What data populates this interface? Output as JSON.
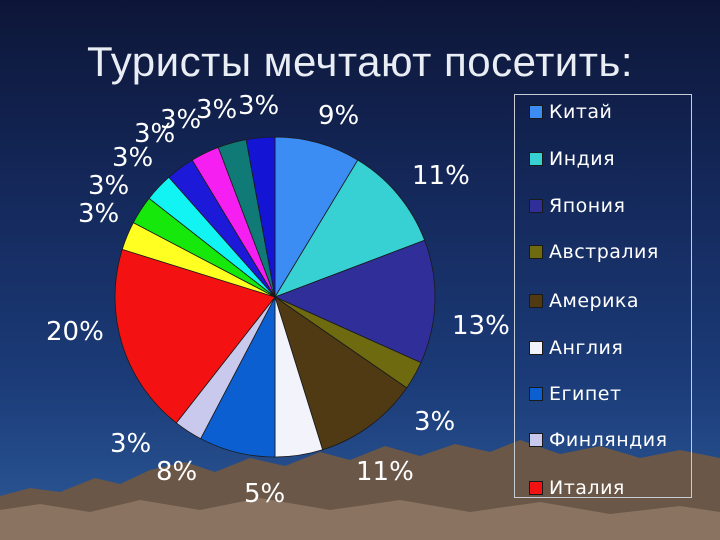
{
  "title": "Туристы мечтают посетить:",
  "chart_data": {
    "type": "pie",
    "title": "Туристы мечтают посетить:",
    "legend_position": "right",
    "legend": [
      "Китай",
      "Индия",
      "Япония",
      "Австралия",
      "Америка",
      "Англия",
      "Египет",
      "Финляндия",
      "Италия"
    ],
    "slices": [
      {
        "label": "Китай",
        "value": 9,
        "display": "9%",
        "color": "#3b8cf3"
      },
      {
        "label": "Индия",
        "value": 11,
        "display": "11%",
        "color": "#37d0d3"
      },
      {
        "label": "Япония",
        "value": 13,
        "display": "13%",
        "color": "#302f9a"
      },
      {
        "label": "Австралия",
        "value": 3,
        "display": "3%",
        "color": "#6e6a10"
      },
      {
        "label": "Америка",
        "value": 11,
        "display": "11%",
        "color": "#4f3a14"
      },
      {
        "label": "Англия",
        "value": 5,
        "display": "5%",
        "color": "#f3f3fb"
      },
      {
        "label": "Египет",
        "value": 8,
        "display": "8%",
        "color": "#0b5fd0"
      },
      {
        "label": "Финляндия",
        "value": 3,
        "display": "3%",
        "color": "#c9c9ee"
      },
      {
        "label": "Италия",
        "value": 20,
        "display": "20%",
        "color": "#f41111"
      },
      {
        "label": "",
        "value": 3,
        "display": "3%",
        "color": "#ffff22"
      },
      {
        "label": "",
        "value": 3,
        "display": "3%",
        "color": "#16e80b"
      },
      {
        "label": "",
        "value": 3,
        "display": "3%",
        "color": "#12f4f4"
      },
      {
        "label": "",
        "value": 3,
        "display": "3%",
        "color": "#1c1ad8"
      },
      {
        "label": "",
        "value": 3,
        "display": "3%",
        "color": "#f41ff0"
      },
      {
        "label": "",
        "value": 3,
        "display": "3%",
        "color": "#0f7a76"
      },
      {
        "label": "",
        "value": 3,
        "display": "3%",
        "color": "#1414d4"
      }
    ]
  }
}
